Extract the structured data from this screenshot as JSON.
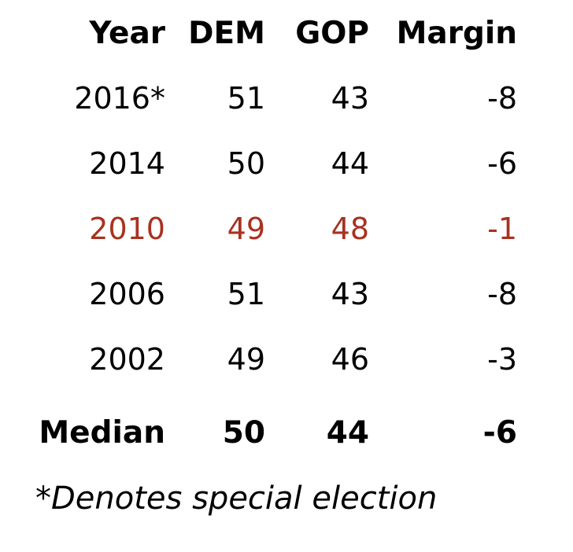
{
  "table": {
    "headers": {
      "year": "Year",
      "dem": "DEM",
      "gop": "GOP",
      "margin": "Margin"
    },
    "rows": [
      {
        "year": "2016*",
        "dem": "51",
        "gop": "43",
        "margin": "-8"
      },
      {
        "year": "2014",
        "dem": "50",
        "gop": "44",
        "margin": "-6"
      },
      {
        "year": "2010",
        "dem": "49",
        "gop": "48",
        "margin": "-1"
      },
      {
        "year": "2006",
        "dem": "51",
        "gop": "43",
        "margin": "-8"
      },
      {
        "year": "2002",
        "dem": "49",
        "gop": "46",
        "margin": "-3"
      }
    ],
    "highlight_color": "#a8321f",
    "summary": {
      "year": "Median",
      "dem": "50",
      "gop": "44",
      "margin": "-6"
    }
  },
  "footnote": "*Denotes special election"
}
